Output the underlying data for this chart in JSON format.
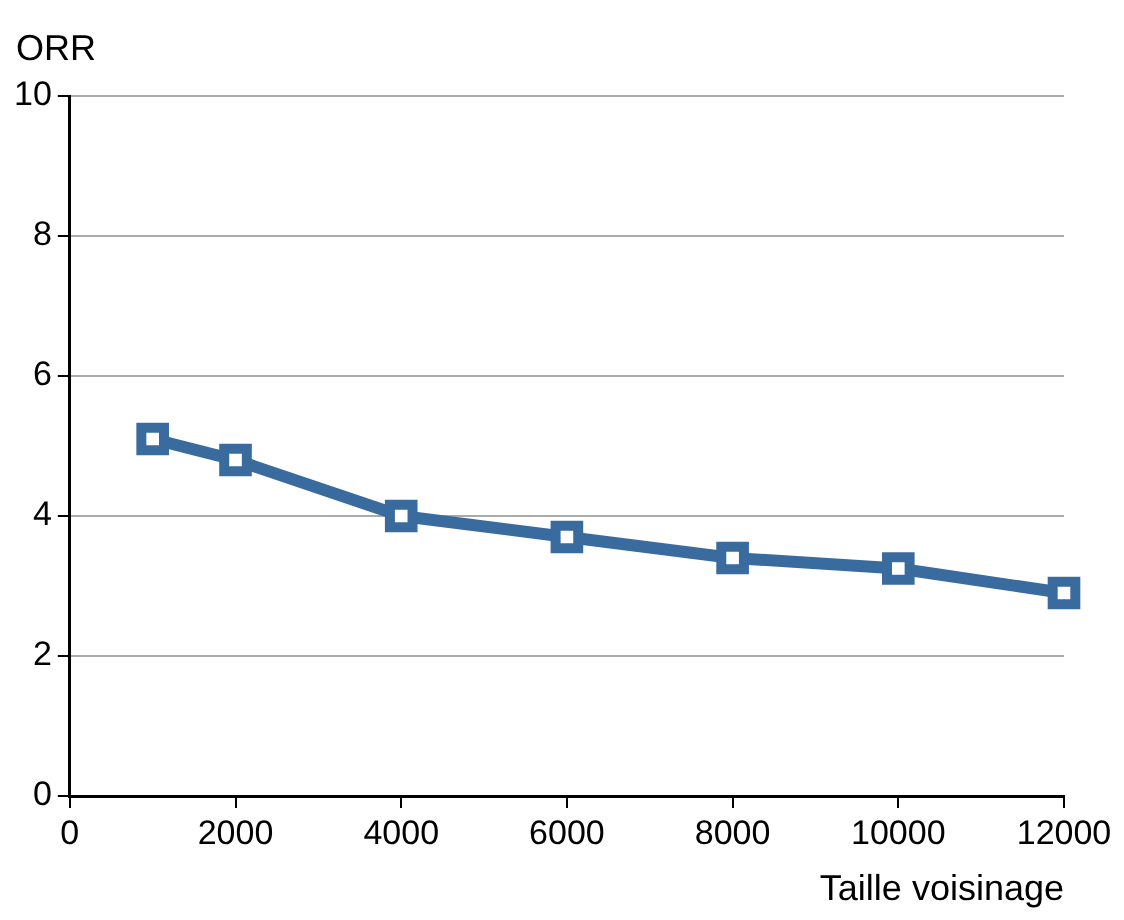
{
  "chart_data": {
    "type": "line",
    "xlabel": "Taille voisinage",
    "ylabel": "ORR",
    "x": [
      1000,
      2000,
      4000,
      6000,
      8000,
      10000,
      12000
    ],
    "series": [
      {
        "color": "#3a6b9f",
        "values": [
          5.1,
          4.8,
          4.0,
          3.7,
          3.4,
          3.25,
          2.9
        ]
      }
    ],
    "xlim": [
      0,
      12000
    ],
    "xticks": [
      0,
      2000,
      4000,
      6000,
      8000,
      10000,
      12000
    ],
    "ylim": [
      0,
      10
    ],
    "yticks": [
      0,
      2,
      4,
      6,
      8,
      10
    ],
    "grid": "y",
    "marker": "square",
    "line_style": "solid",
    "legend": false
  }
}
